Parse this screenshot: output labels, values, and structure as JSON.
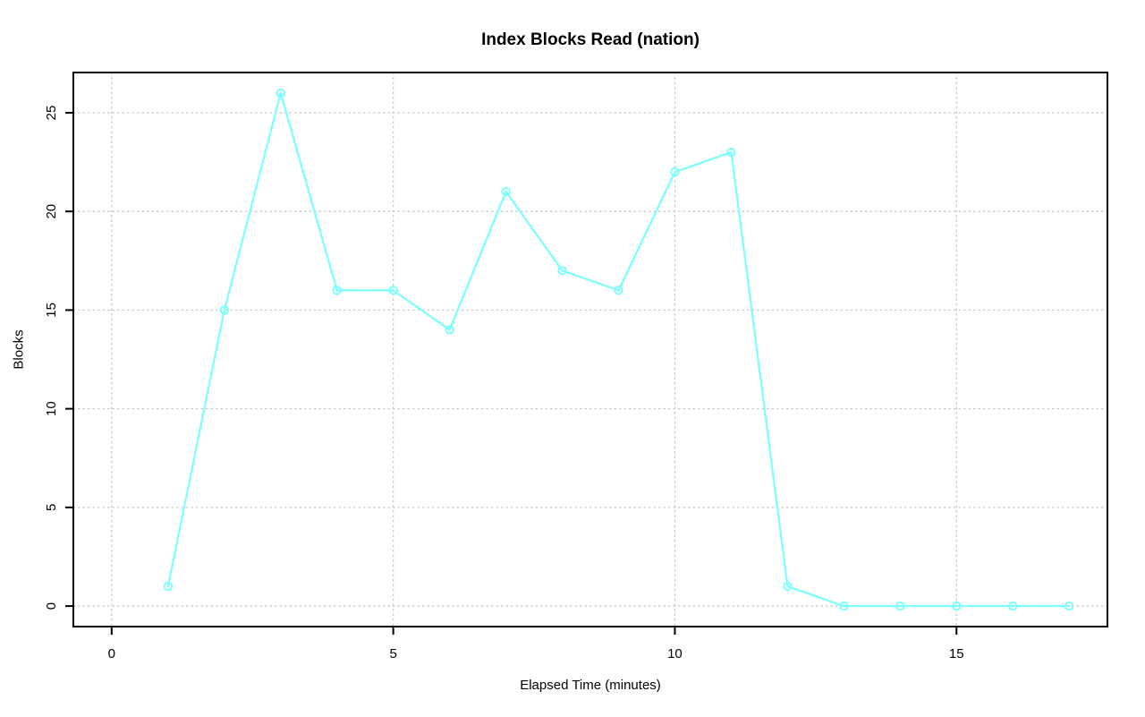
{
  "chart_data": {
    "type": "line",
    "title": "Index Blocks Read (nation)",
    "xlabel": "Elapsed Time (minutes)",
    "ylabel": "Blocks",
    "x": [
      1,
      2,
      3,
      4,
      5,
      6,
      7,
      8,
      9,
      10,
      11,
      12,
      13,
      14,
      15,
      16,
      17
    ],
    "y": [
      1,
      15,
      26,
      16,
      16,
      14,
      21,
      17,
      16,
      22,
      23,
      1,
      0,
      0,
      0,
      0,
      0
    ],
    "x_ticks": [
      0,
      5,
      10,
      15
    ],
    "y_ticks": [
      0,
      5,
      10,
      15,
      20,
      25
    ],
    "xlim": [
      -0.68,
      17.68
    ],
    "ylim": [
      -1.04,
      27.04
    ],
    "grid": true,
    "legend": "none",
    "marker": "open-circle",
    "colors": {
      "line": "#7BFFFF",
      "grid": "#c8c8c8",
      "axis": "#000000",
      "background": "#ffffff"
    }
  }
}
